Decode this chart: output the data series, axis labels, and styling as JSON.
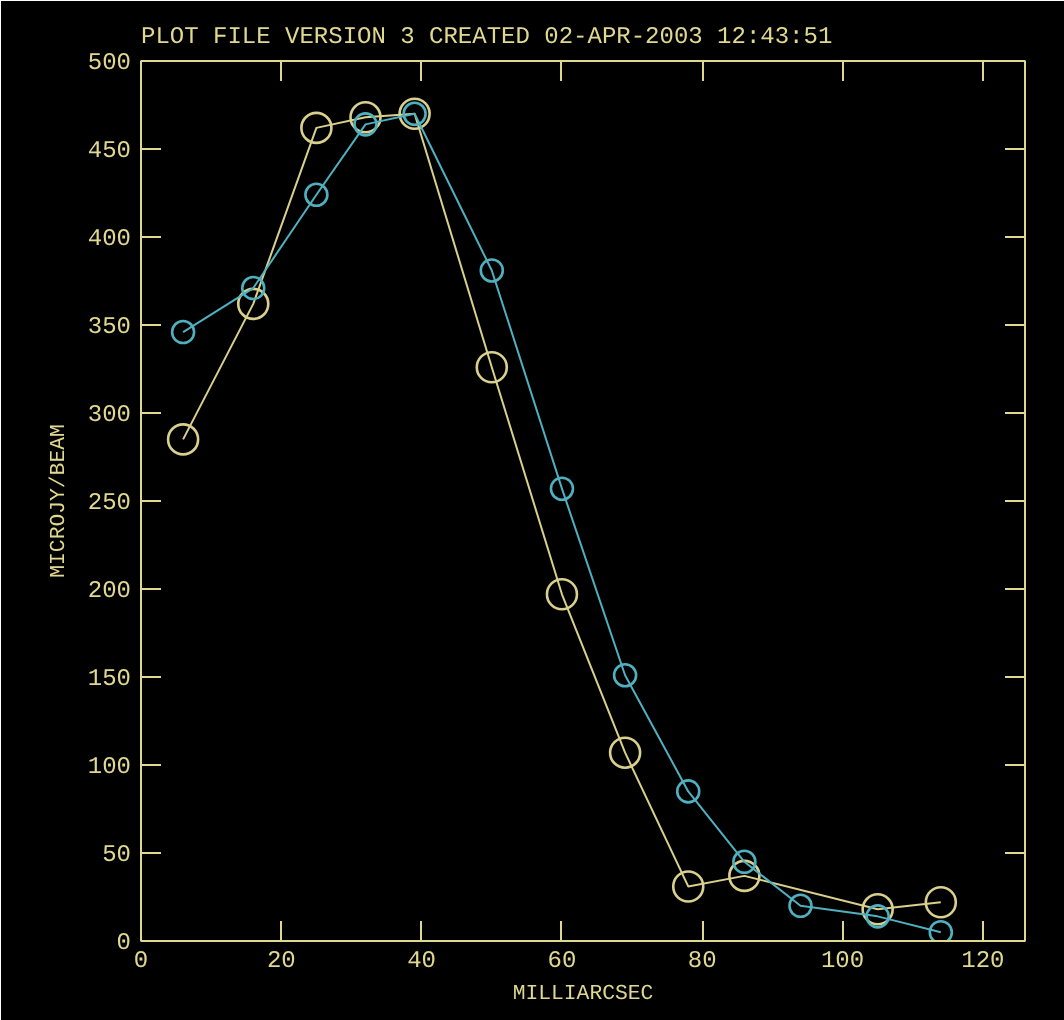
{
  "chart_data": {
    "type": "line",
    "title": "PLOT FILE VERSION 3  CREATED 02-APR-2003 12:43:51",
    "xlabel": "MILLIARCSEC",
    "ylabel": "MICROJY/BEAM",
    "series": [
      {
        "color": "#d8d08c",
        "x": [
          6,
          16,
          25,
          32,
          39,
          50,
          60,
          69,
          78,
          86,
          105,
          114
        ],
        "values": [
          285,
          362,
          462,
          468,
          470,
          326,
          197,
          107,
          31,
          37,
          18,
          22
        ]
      },
      {
        "color": "#4fb0c0",
        "x": [
          6,
          16,
          25,
          32,
          39,
          50,
          60,
          69,
          78,
          86,
          94,
          105,
          114
        ],
        "values": [
          346,
          371,
          424,
          464,
          470,
          381,
          257,
          151,
          85,
          45,
          20,
          14,
          5
        ]
      }
    ],
    "xlim": [
      0,
      126
    ],
    "ylim": [
      0,
      500
    ],
    "xticks": [
      0,
      20,
      40,
      60,
      80,
      100,
      120
    ],
    "yticks": [
      0,
      50,
      100,
      150,
      200,
      250,
      300,
      350,
      400,
      450,
      500
    ],
    "marker": "circle"
  }
}
